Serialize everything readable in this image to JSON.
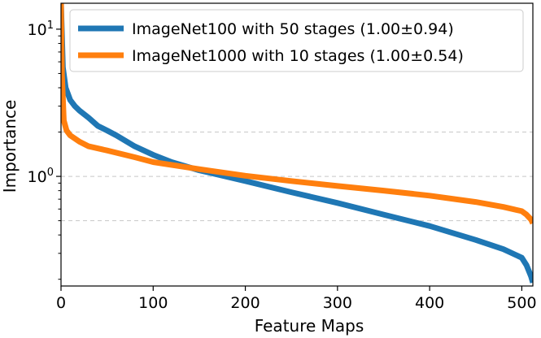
{
  "chart_data": {
    "type": "line",
    "xlabel": "Feature Maps",
    "ylabel": "Importance",
    "y_scale": "log",
    "xlim": [
      0,
      512
    ],
    "ylim": [
      0.18,
      15
    ],
    "x_ticks": [
      0,
      100,
      200,
      300,
      400,
      500
    ],
    "x_tick_labels": [
      "0",
      "100",
      "200",
      "300",
      "400",
      "500"
    ],
    "y_ticks": [
      1,
      10
    ],
    "y_tick_labels": [
      {
        "base": "10",
        "exp": "0"
      },
      {
        "base": "10",
        "exp": "1"
      }
    ],
    "grid": "dashed horizontal at 0.5, 1, 2",
    "legend_position": "top-right",
    "series": [
      {
        "name": "ImageNet100 with 50 stages (1.00±0.94)",
        "color": "#1f77b4",
        "x": [
          0,
          2,
          5,
          10,
          15,
          20,
          30,
          40,
          50,
          60,
          80,
          100,
          120,
          150,
          200,
          250,
          300,
          350,
          400,
          450,
          480,
          500,
          505,
          510,
          512
        ],
        "y": [
          15,
          5.5,
          4.0,
          3.3,
          3.0,
          2.8,
          2.5,
          2.2,
          2.05,
          1.9,
          1.6,
          1.4,
          1.25,
          1.1,
          0.93,
          0.78,
          0.66,
          0.55,
          0.46,
          0.37,
          0.32,
          0.28,
          0.25,
          0.21,
          0.19
        ]
      },
      {
        "name": "ImageNet1000 with 10 stages (1.00±0.54)",
        "color": "#ff7f0e",
        "x": [
          0,
          1,
          3,
          6,
          10,
          20,
          30,
          50,
          80,
          100,
          150,
          200,
          250,
          300,
          350,
          400,
          450,
          480,
          500,
          505,
          510,
          512
        ],
        "y": [
          15,
          5.0,
          2.4,
          2.05,
          1.9,
          1.72,
          1.6,
          1.5,
          1.35,
          1.25,
          1.12,
          1.01,
          0.93,
          0.86,
          0.8,
          0.74,
          0.67,
          0.62,
          0.58,
          0.55,
          0.51,
          0.48
        ]
      }
    ]
  }
}
